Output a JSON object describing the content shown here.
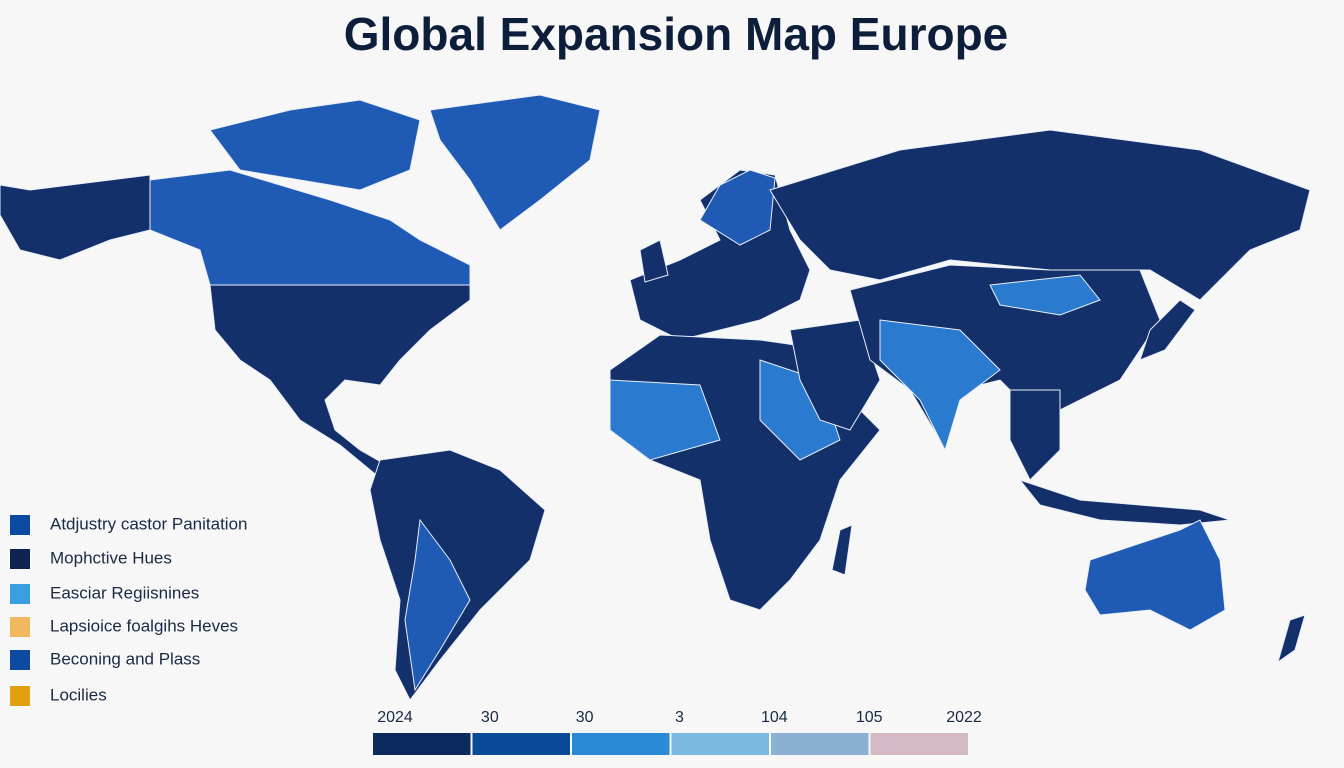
{
  "header": {
    "title": "Global Expansion Map Europe"
  },
  "legend": [
    {
      "label": "Atdjustry castor Panitation",
      "color": "#0a4aa0"
    },
    {
      "label": "Mophctive Hues",
      "color": "#0d2350"
    },
    {
      "label": "Easciar Regiisnines",
      "color": "#3a9ee0"
    },
    {
      "label": "Lapsioice foalgihs Heves",
      "color": "#f2b860"
    },
    {
      "label": "Beconing and Plass",
      "color": "#0b4a9e"
    },
    {
      "label": "Locilies",
      "color": "#e0a010"
    }
  ],
  "scale": [
    {
      "label": "2024",
      "color": "#0d2a5e"
    },
    {
      "label": "30",
      "color": "#0a4a9a"
    },
    {
      "label": "30",
      "color": "#2a8ad6"
    },
    {
      "label": "3",
      "color": "#7ab8e0"
    },
    {
      "label": "104",
      "color": "#8ab0d4"
    },
    {
      "label": "105",
      "color": "#d4b8c4"
    },
    {
      "label": "2022",
      "color": "#d4b8c4"
    }
  ]
}
